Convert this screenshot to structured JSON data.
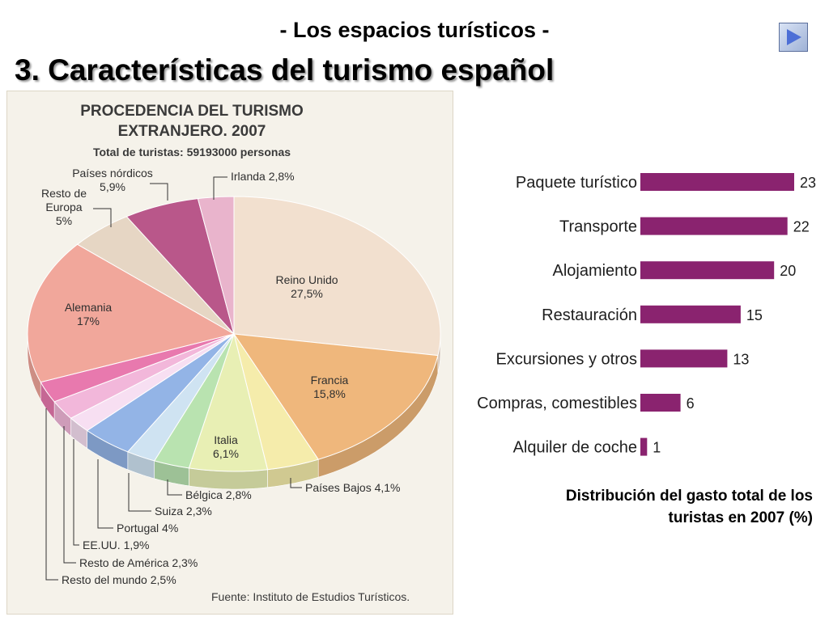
{
  "header": {
    "subtitle": "- Los espacios turísticos -",
    "title": "3. Características del turismo español"
  },
  "pie_chart": {
    "title_line1": "PROCEDENCIA DEL TURISMO",
    "title_line2": "EXTRANJERO. 2007",
    "total": "Total de turistas: 59193000 personas",
    "source": "Fuente: Instituto de Estudios Turísticos."
  },
  "bar_caption": {
    "line1": "Distribución del gasto total de los",
    "line2": "turistas en 2007 (%)"
  },
  "chart_data": [
    {
      "type": "pie",
      "title": "PROCEDENCIA DEL TURISMO EXTRANJERO. 2007",
      "subtitle": "Total de turistas: 59193000 personas",
      "unit": "%",
      "slices": [
        {
          "name": "Reino Unido",
          "label": "27,5%",
          "value": 27.5,
          "color": "#f2e0cf"
        },
        {
          "name": "Francia",
          "label": "15,8%",
          "value": 15.8,
          "color": "#efb77c"
        },
        {
          "name": "Países Bajos",
          "label": "4,1%",
          "value": 4.1,
          "color": "#f5ecab"
        },
        {
          "name": "Italia",
          "label": "6,1%",
          "value": 6.1,
          "color": "#e8efb4"
        },
        {
          "name": "Bélgica",
          "label": "2,8%",
          "value": 2.8,
          "color": "#b9e3b0"
        },
        {
          "name": "Suiza",
          "label": "2,3%",
          "value": 2.3,
          "color": "#cfe3f2"
        },
        {
          "name": "Portugal",
          "label": "4%",
          "value": 4,
          "color": "#93b4e6"
        },
        {
          "name": "EE.UU.",
          "label": "1,9%",
          "value": 1.9,
          "color": "#f7dff2"
        },
        {
          "name": "Resto de América",
          "label": "2,3%",
          "value": 2.3,
          "color": "#f2b7da"
        },
        {
          "name": "Resto del mundo",
          "label": "2,5%",
          "value": 2.5,
          "color": "#e879ae"
        },
        {
          "name": "Alemania",
          "label": "17%",
          "value": 17,
          "color": "#f1a79b"
        },
        {
          "name": "Resto de Europa",
          "label": "5%",
          "value": 5,
          "color": "#e6d6c4"
        },
        {
          "name": "Países nórdicos",
          "label": "5,9%",
          "value": 5.9,
          "color": "#b9578a"
        },
        {
          "name": "Irlanda",
          "label": "2,8%",
          "value": 2.8,
          "color": "#e9b4cc"
        }
      ]
    },
    {
      "type": "bar",
      "orientation": "horizontal",
      "title": "Distribución del gasto total de los turistas en 2007 (%)",
      "categories": [
        "Paquete turístico",
        "Transporte",
        "Alojamiento",
        "Restauración",
        "Excursiones y otros",
        "Compras, comestibles",
        "Alquiler de coche"
      ],
      "values": [
        23,
        22,
        20,
        15,
        13,
        6,
        1
      ],
      "color": "#8a236f",
      "grid": false,
      "xlim": [
        0,
        23
      ]
    }
  ]
}
